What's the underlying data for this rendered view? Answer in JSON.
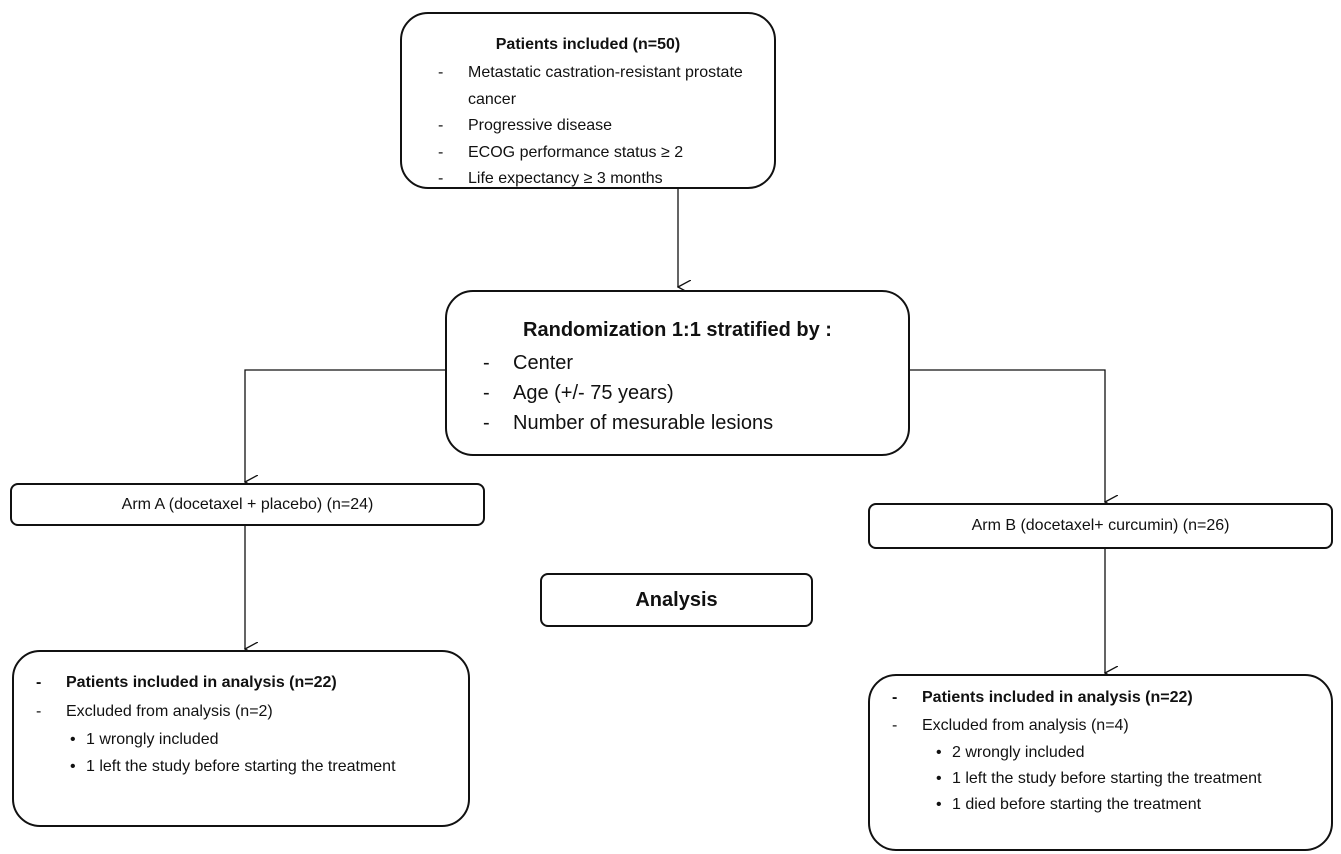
{
  "inclusion": {
    "title": "Patients included (n=50)",
    "items": [
      "Metastatic castration-resistant prostate cancer",
      "Progressive disease",
      "ECOG performance status ≥ 2",
      "Life expectancy ≥ 3 months"
    ]
  },
  "randomization": {
    "title": "Randomization 1:1 stratified by :",
    "items": [
      "Center",
      "Age (+/- 75 years)",
      "Number of mesurable lesions"
    ]
  },
  "arms": [
    {
      "label": "Arm A (docetaxel + placebo) (n=24)"
    },
    {
      "label": "Arm B (docetaxel+ curcumin) (n=26)"
    }
  ],
  "analysis": {
    "label": "Analysis"
  },
  "arm_analyses": [
    {
      "included": "Patients included in analysis (n=22)",
      "excluded": "Excluded from analysis (n=2)",
      "reasons": [
        "1 wrongly included",
        "1 left the study before starting the treatment"
      ]
    },
    {
      "included": "Patients included in analysis (n=22)",
      "excluded": "Excluded from analysis (n=4)",
      "reasons": [
        "2 wrongly included",
        "1 left the study before starting the treatment",
        "1 died before starting the treatment"
      ]
    }
  ]
}
